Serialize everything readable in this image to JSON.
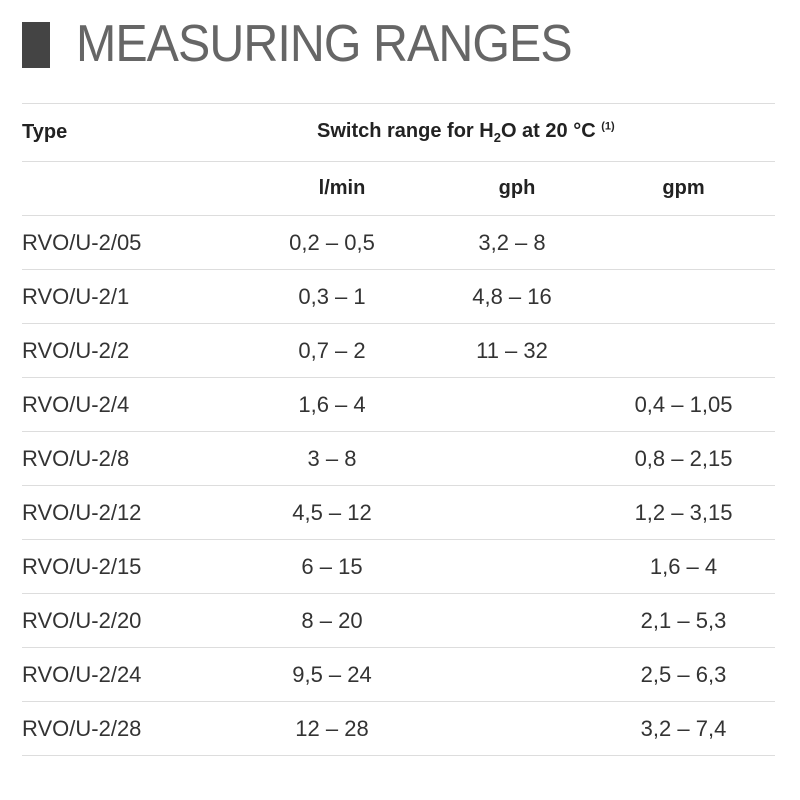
{
  "header": {
    "title": "MEASURING RANGES"
  },
  "table": {
    "type_header": "Type",
    "group_header": {
      "before": "Switch range for H",
      "subscript": "2",
      "after": "O at 20 °C",
      "footnote": "(1)"
    },
    "units": [
      "l/min",
      "gph",
      "gpm"
    ],
    "rows": [
      [
        "RVO/U-2/05",
        "0,2 – 0,5",
        "3,2 – 8",
        null
      ],
      [
        "RVO/U-2/1",
        "0,3 – 1",
        "4,8 – 16",
        null
      ],
      [
        "RVO/U-2/2",
        "0,7 – 2",
        "11 – 32",
        null
      ],
      [
        "RVO/U-2/4",
        "1,6 – 4",
        null,
        "0,4 – 1,05"
      ],
      [
        "RVO/U-2/8",
        "3 – 8",
        null,
        "0,8 – 2,15"
      ],
      [
        "RVO/U-2/12",
        "4,5 – 12",
        null,
        "1,2 – 3,15"
      ],
      [
        "RVO/U-2/15",
        "6 – 15",
        null,
        "1,6 – 4"
      ],
      [
        "RVO/U-2/20",
        "8 – 20",
        null,
        "2,1 – 5,3"
      ],
      [
        "RVO/U-2/24",
        "9,5 – 24",
        null,
        "2,5 – 6,3"
      ],
      [
        "RVO/U-2/28",
        "12 – 28",
        null,
        "3,2 – 7,4"
      ]
    ]
  }
}
